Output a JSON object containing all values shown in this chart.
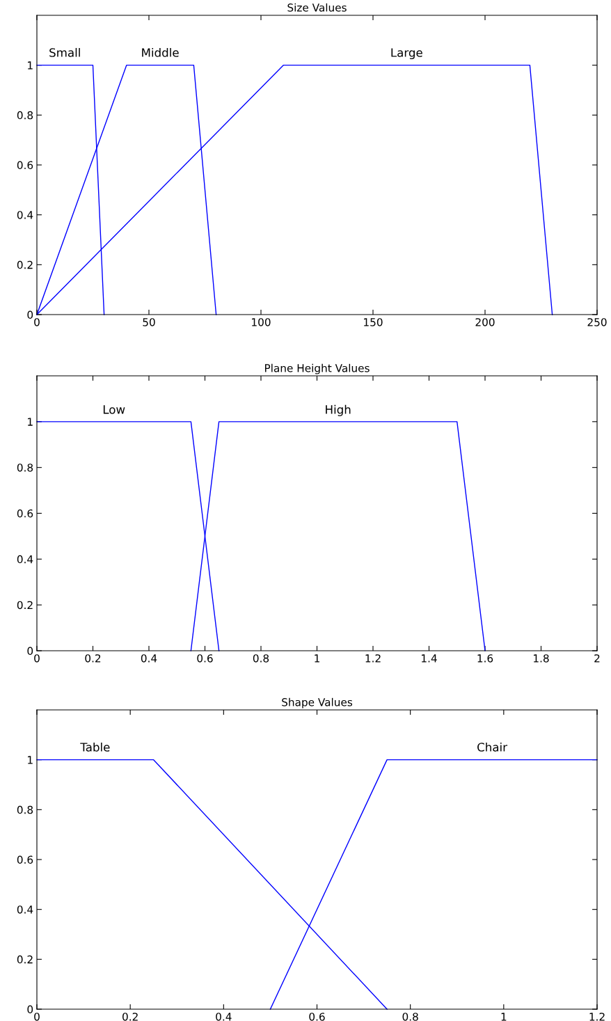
{
  "chart_data": [
    {
      "type": "line",
      "title": "Size Values",
      "xlim": [
        0,
        250
      ],
      "xticks": [
        0,
        50,
        100,
        150,
        200,
        250
      ],
      "ylim": [
        0,
        1.2
      ],
      "yticks": [
        0,
        0.2,
        0.4,
        0.6,
        0.8,
        1
      ],
      "grid": false,
      "legend": false,
      "series": [
        {
          "name": "Small",
          "color": "#0000ff",
          "x": [
            0,
            25,
            30
          ],
          "values": [
            1,
            1,
            0
          ]
        },
        {
          "name": "Middle",
          "color": "#0000ff",
          "x": [
            0,
            40,
            70,
            80
          ],
          "values": [
            0,
            1,
            1,
            0
          ]
        },
        {
          "name": "Large",
          "color": "#0000ff",
          "x": [
            0,
            110,
            220,
            230
          ],
          "values": [
            0,
            1,
            1,
            0
          ]
        }
      ]
    },
    {
      "type": "line",
      "title": "Plane Height Values",
      "xlim": [
        0,
        2
      ],
      "xticks": [
        0,
        0.2,
        0.4,
        0.6,
        0.8,
        1,
        1.2,
        1.4,
        1.6,
        1.8,
        2
      ],
      "ylim": [
        0,
        1.2
      ],
      "yticks": [
        0,
        0.2,
        0.4,
        0.6,
        0.8,
        1
      ],
      "grid": false,
      "legend": false,
      "series": [
        {
          "name": "Low",
          "color": "#0000ff",
          "x": [
            0,
            0.55,
            0.65
          ],
          "values": [
            1,
            1,
            0
          ]
        },
        {
          "name": "High",
          "color": "#0000ff",
          "x": [
            0.55,
            0.65,
            1.5,
            1.6
          ],
          "values": [
            0,
            1,
            1,
            0
          ]
        }
      ]
    },
    {
      "type": "line",
      "title": "Shape Values",
      "xlim": [
        0,
        1.2
      ],
      "xticks": [
        0,
        0.2,
        0.4,
        0.6,
        0.8,
        1,
        1.2
      ],
      "ylim": [
        0,
        1.2
      ],
      "yticks": [
        0,
        0.2,
        0.4,
        0.6,
        0.8,
        1
      ],
      "grid": false,
      "legend": false,
      "series": [
        {
          "name": "Table",
          "color": "#0000ff",
          "x": [
            0,
            0.25,
            0.75
          ],
          "values": [
            1,
            1,
            0
          ]
        },
        {
          "name": "Chair",
          "color": "#0000ff",
          "x": [
            0.5,
            0.75,
            1.2
          ],
          "values": [
            0,
            1,
            1
          ]
        }
      ]
    }
  ]
}
